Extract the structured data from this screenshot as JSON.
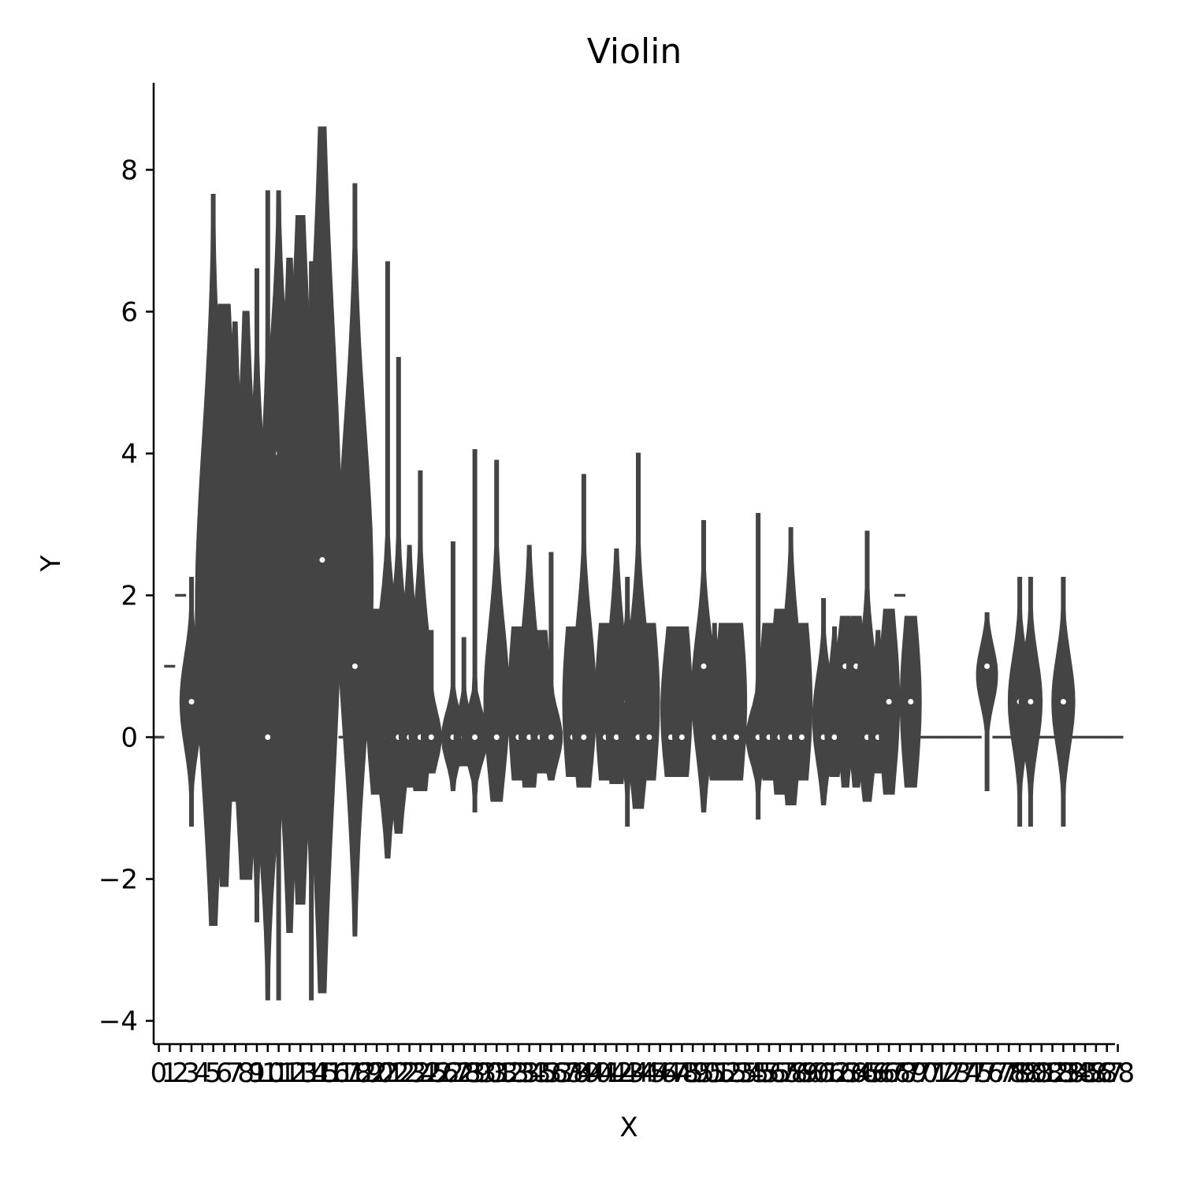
{
  "chart_data": {
    "type": "violin",
    "title": "Violin",
    "xlabel": "X",
    "ylabel": "Y",
    "ylim": [
      -4.35,
      9.2
    ],
    "yticks": [
      -4,
      -2,
      0,
      2,
      4,
      6,
      8
    ],
    "ytick_labels": [
      "−4",
      "−2",
      "0",
      "2",
      "4",
      "6",
      "8"
    ],
    "grid": false,
    "color": "#444444",
    "x_categories": [
      "0",
      "1",
      "2",
      "3",
      "4",
      "5",
      "6",
      "7",
      "8",
      "9",
      "10",
      "11",
      "12",
      "13",
      "14",
      "15",
      "16",
      "17",
      "18",
      "19",
      "20",
      "21",
      "22",
      "23",
      "24",
      "25",
      "26",
      "27",
      "28",
      "29",
      "30",
      "31",
      "32",
      "33",
      "34",
      "35",
      "36",
      "37",
      "38",
      "39",
      "40",
      "41",
      "42",
      "43",
      "44",
      "45",
      "46",
      "47",
      "48",
      "49",
      "50",
      "51",
      "52",
      "53",
      "54",
      "55",
      "56",
      "57",
      "58",
      "59",
      "60",
      "61",
      "62",
      "63",
      "64",
      "65",
      "66",
      "67",
      "68",
      "69",
      "70",
      "71",
      "72",
      "73",
      "74",
      "75",
      "76",
      "77",
      "78",
      "79",
      "80",
      "81",
      "82",
      "83",
      "84",
      "85",
      "86",
      "87",
      "88"
    ],
    "violins": [
      {
        "x": 0,
        "min": 0,
        "max": 0,
        "q1": 0,
        "q3": 0,
        "median": 0
      },
      {
        "x": 1,
        "min": 1,
        "max": 1,
        "q1": 1,
        "q3": 1,
        "median": 1
      },
      {
        "x": 2,
        "min": 2,
        "max": 2,
        "q1": 2,
        "q3": 2,
        "median": 2
      },
      {
        "x": 3,
        "min": -1.25,
        "max": 2.25,
        "q1": 0.15,
        "q3": 0.85,
        "median": 0.5
      },
      {
        "x": 5,
        "min": -2.65,
        "max": 7.65,
        "q1": 0.4,
        "q3": 3.1,
        "median": 1.0
      },
      {
        "x": 6,
        "min": -2.1,
        "max": 6.1,
        "q1": 0.95,
        "q3": 3.85,
        "median": 2.0
      },
      {
        "x": 7,
        "min": -0.9,
        "max": 5.85,
        "q1": 0.15,
        "q3": 2.6,
        "median": 1.0
      },
      {
        "x": 8,
        "min": -2.0,
        "max": 6.0,
        "q1": 0.15,
        "q3": 2.85,
        "median": 1.0
      },
      {
        "x": 9,
        "min": -2.6,
        "max": 6.6,
        "q1": 0.65,
        "q3": 2.6,
        "median": 1.5
      },
      {
        "x": 10,
        "min": -3.7,
        "max": 7.7,
        "q1": -0.1,
        "q3": 2.1,
        "median": 0.0
      },
      {
        "x": 11,
        "min": -3.7,
        "max": 7.7,
        "q1": 1.9,
        "q3": 4.1,
        "median": 4.0
      },
      {
        "x": 12,
        "min": -2.75,
        "max": 6.75,
        "q1": 0.65,
        "q3": 3.35,
        "median": 2.0
      },
      {
        "x": 13,
        "min": -2.35,
        "max": 7.35,
        "q1": 0.9,
        "q3": 4.1,
        "median": 2.5
      },
      {
        "x": 14,
        "min": -3.7,
        "max": 6.7,
        "q1": 0.65,
        "q3": 2.35,
        "median": 1.5
      },
      {
        "x": 15,
        "min": -3.6,
        "max": 8.6,
        "q1": 0.65,
        "q3": 4.35,
        "median": 2.5
      },
      {
        "x": 16,
        "min": 1,
        "max": 1,
        "q1": 1,
        "q3": 1,
        "median": 1
      },
      {
        "x": 17,
        "min": 0,
        "max": 0,
        "q1": 0,
        "q3": 0,
        "median": 0
      },
      {
        "x": 18,
        "min": -2.8,
        "max": 7.8,
        "q1": 0.9,
        "q3": 3.35,
        "median": 1.0
      },
      {
        "x": 20,
        "min": -0.8,
        "max": 1.8,
        "q1": -0.1,
        "q3": 1.1,
        "median": 0.0
      },
      {
        "x": 21,
        "min": -1.7,
        "max": 6.7,
        "q1": -0.1,
        "q3": 1.1,
        "median": 0.0
      },
      {
        "x": 22,
        "min": -1.35,
        "max": 5.35,
        "q1": -0.1,
        "q3": 1.1,
        "median": 0.0
      },
      {
        "x": 23,
        "min": -0.7,
        "max": 2.7,
        "q1": -0.1,
        "q3": 1.1,
        "median": 0.0
      },
      {
        "x": 24,
        "min": -0.75,
        "max": 3.75,
        "q1": -0.1,
        "q3": 1.1,
        "median": 0.0
      },
      {
        "x": 25,
        "min": -0.5,
        "max": 1.5,
        "q1": -0.05,
        "q3": 0.05,
        "median": 0.0
      },
      {
        "x": 27,
        "min": -0.75,
        "max": 2.75,
        "q1": -0.02,
        "q3": 0.02,
        "median": 0.0
      },
      {
        "x": 28,
        "min": -0.4,
        "max": 1.4,
        "q1": -0.02,
        "q3": 0.02,
        "median": 0.0
      },
      {
        "x": 29,
        "min": -1.05,
        "max": 4.05,
        "q1": -0.02,
        "q3": 0.02,
        "median": 0.0
      },
      {
        "x": 31,
        "min": -0.9,
        "max": 3.9,
        "q1": -0.1,
        "q3": 1.1,
        "median": 0.0
      },
      {
        "x": 33,
        "min": -0.6,
        "max": 1.55,
        "q1": -0.1,
        "q3": 1.1,
        "median": 0.0
      },
      {
        "x": 34,
        "min": -0.7,
        "max": 2.7,
        "q1": -0.1,
        "q3": 1.1,
        "median": 0.0
      },
      {
        "x": 35,
        "min": -0.5,
        "max": 1.5,
        "q1": -0.1,
        "q3": 1.1,
        "median": 0.0
      },
      {
        "x": 36,
        "min": -0.6,
        "max": 2.6,
        "q1": -0.05,
        "q3": 0.05,
        "median": 0.0
      },
      {
        "x": 38,
        "min": -0.55,
        "max": 1.55,
        "q1": -0.1,
        "q3": 1.1,
        "median": 0.0
      },
      {
        "x": 39,
        "min": -0.7,
        "max": 3.7,
        "q1": -0.1,
        "q3": 1.1,
        "median": 0.0
      },
      {
        "x": 41,
        "min": -0.6,
        "max": 1.6,
        "q1": -0.1,
        "q3": 1.1,
        "median": 0.0
      },
      {
        "x": 42,
        "min": -0.65,
        "max": 2.65,
        "q1": -0.1,
        "q3": 1.1,
        "median": 0.0
      },
      {
        "x": 43,
        "min": -1.25,
        "max": 2.25,
        "q1": 0.15,
        "q3": 0.85,
        "median": 0.5
      },
      {
        "x": 44,
        "min": -1.0,
        "max": 4.0,
        "q1": -0.1,
        "q3": 1.1,
        "median": 0.0
      },
      {
        "x": 45,
        "min": -0.6,
        "max": 1.6,
        "q1": -0.1,
        "q3": 1.1,
        "median": 0.0
      },
      {
        "x": 47,
        "min": -0.55,
        "max": 1.55,
        "q1": -0.1,
        "q3": 0.85,
        "median": 0.0
      },
      {
        "x": 48,
        "min": -0.55,
        "max": 1.55,
        "q1": -0.1,
        "q3": 1.1,
        "median": 0.0
      },
      {
        "x": 50,
        "min": -1.05,
        "max": 3.05,
        "q1": 0.15,
        "q3": 1.1,
        "median": 1.0
      },
      {
        "x": 51,
        "min": -0.6,
        "max": 1.6,
        "q1": -0.1,
        "q3": 0.6,
        "median": 0.0
      },
      {
        "x": 52,
        "min": -0.6,
        "max": 1.6,
        "q1": -0.1,
        "q3": 1.1,
        "median": 0.0
      },
      {
        "x": 53,
        "min": -0.6,
        "max": 1.6,
        "q1": -0.1,
        "q3": 1.1,
        "median": 0.0
      },
      {
        "x": 55,
        "min": -1.15,
        "max": 3.15,
        "q1": -0.05,
        "q3": 0.05,
        "median": 0.0
      },
      {
        "x": 56,
        "min": -0.6,
        "max": 1.6,
        "q1": -0.1,
        "q3": 1.1,
        "median": 0.0
      },
      {
        "x": 57,
        "min": -0.8,
        "max": 1.8,
        "q1": -0.1,
        "q3": 1.1,
        "median": 0.0
      },
      {
        "x": 58,
        "min": -0.95,
        "max": 2.95,
        "q1": -0.1,
        "q3": 1.1,
        "median": 0.0
      },
      {
        "x": 59,
        "min": -0.6,
        "max": 1.6,
        "q1": -0.1,
        "q3": 1.1,
        "median": 0.0
      },
      {
        "x": 61,
        "min": -0.95,
        "max": 1.95,
        "q1": -0.1,
        "q3": 0.6,
        "median": 0.0
      },
      {
        "x": 62,
        "min": -0.55,
        "max": 1.55,
        "q1": -0.1,
        "q3": 0.6,
        "median": 0.0
      },
      {
        "x": 63,
        "min": -0.7,
        "max": 1.7,
        "q1": 0.15,
        "q3": 1.1,
        "median": 1.0
      },
      {
        "x": 64,
        "min": -0.7,
        "max": 1.7,
        "q1": 0.15,
        "q3": 1.1,
        "median": 1.0
      },
      {
        "x": 65,
        "min": -0.9,
        "max": 2.9,
        "q1": -0.1,
        "q3": 0.85,
        "median": 0.0
      },
      {
        "x": 66,
        "min": -0.5,
        "max": 1.5,
        "q1": -0.1,
        "q3": 0.6,
        "median": 0.0
      },
      {
        "x": 67,
        "min": -0.8,
        "max": 1.8,
        "q1": -0.1,
        "q3": 1.1,
        "median": 0.5
      },
      {
        "x": 68,
        "min": 2,
        "max": 2,
        "q1": 2,
        "q3": 2,
        "median": 2
      },
      {
        "x": 69,
        "min": -0.7,
        "max": 1.7,
        "q1": -0.1,
        "q3": 1.1,
        "median": 0.5
      },
      {
        "x": 70,
        "min": 0,
        "max": 0,
        "q1": 0,
        "q3": 0,
        "median": 0
      },
      {
        "x": 71,
        "min": 0,
        "max": 0,
        "q1": 0,
        "q3": 0,
        "median": 0
      },
      {
        "x": 72,
        "min": 0,
        "max": 0,
        "q1": 0,
        "q3": 0,
        "median": 0
      },
      {
        "x": 73,
        "min": 0,
        "max": 0,
        "q1": 0,
        "q3": 0,
        "median": 0
      },
      {
        "x": 74,
        "min": 0,
        "max": 0,
        "q1": 0,
        "q3": 0,
        "median": 0
      },
      {
        "x": 75,
        "min": 0,
        "max": 0,
        "q1": 0,
        "q3": 0,
        "median": 0
      },
      {
        "x": 76,
        "min": -0.75,
        "max": 1.75,
        "q1": 0.65,
        "q3": 1.1,
        "median": 1.0
      },
      {
        "x": 77,
        "min": 0,
        "max": 0,
        "q1": 0,
        "q3": 0,
        "median": 0
      },
      {
        "x": 78,
        "min": 0,
        "max": 0,
        "q1": 0,
        "q3": 0,
        "median": 0
      },
      {
        "x": 79,
        "min": -1.25,
        "max": 2.25,
        "q1": 0.15,
        "q3": 0.85,
        "median": 0.5
      },
      {
        "x": 80,
        "min": -1.25,
        "max": 2.25,
        "q1": 0.15,
        "q3": 0.85,
        "median": 0.5
      },
      {
        "x": 81,
        "min": 0,
        "max": 0,
        "q1": 0,
        "q3": 0,
        "median": 0
      },
      {
        "x": 82,
        "min": 0,
        "max": 0,
        "q1": 0,
        "q3": 0,
        "median": 0
      },
      {
        "x": 83,
        "min": -1.25,
        "max": 2.25,
        "q1": 0.15,
        "q3": 0.85,
        "median": 0.5
      },
      {
        "x": 84,
        "min": 0,
        "max": 0,
        "q1": 0,
        "q3": 0,
        "median": 0
      },
      {
        "x": 85,
        "min": 0,
        "max": 0,
        "q1": 0,
        "q3": 0,
        "median": 0
      },
      {
        "x": 86,
        "min": 0,
        "max": 0,
        "q1": 0,
        "q3": 0,
        "median": 0
      },
      {
        "x": 87,
        "min": 0,
        "max": 0,
        "q1": 0,
        "q3": 0,
        "median": 0
      },
      {
        "x": 88,
        "min": 0,
        "max": 0,
        "q1": 0,
        "q3": 0,
        "median": 0
      }
    ]
  }
}
